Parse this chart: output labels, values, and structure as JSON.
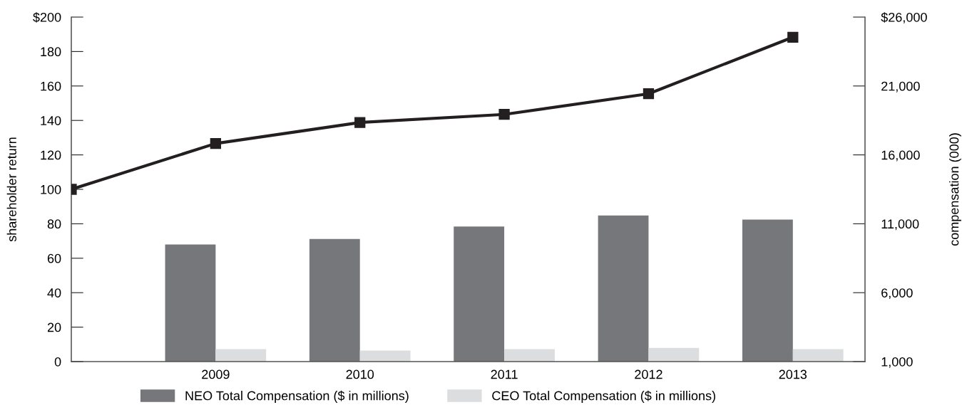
{
  "chart_data": {
    "type": "bar",
    "categories": [
      null,
      "2009",
      "2010",
      "2011",
      "2012",
      "2013"
    ],
    "series": [
      {
        "name": "NEO Total Compensation ($ in millions)",
        "color": "#76777b",
        "axis": "y2",
        "values": [
          null,
          9500,
          9900,
          10800,
          11600,
          11300
        ]
      },
      {
        "name": "CEO Total Compensation ($ in millions)",
        "color": "#dcddde",
        "axis": "y2",
        "values": [
          null,
          1900,
          1800,
          1900,
          2000,
          1900
        ]
      },
      {
        "type": "line",
        "color": "#231f20",
        "marker": "square",
        "line_style": "solid",
        "values": [
          100,
          126.6,
          138.8,
          143.5,
          155.5,
          188.3
        ]
      }
    ],
    "ylabel": "shareholder return",
    "y2label": "compensation (000)",
    "ylim": [
      0,
      200
    ],
    "yticks": [
      0,
      20,
      40,
      60,
      80,
      100,
      120,
      140,
      160,
      180,
      {
        "value": 200,
        "label": "$200"
      }
    ],
    "y2lim": [
      1000,
      26000
    ],
    "y2ticks": [
      {
        "value": 1000,
        "label": "1,000"
      },
      {
        "value": 6000,
        "label": "6,000"
      },
      {
        "value": 11000,
        "label": "11,000"
      },
      {
        "value": 16000,
        "label": "16,000"
      },
      {
        "value": 21000,
        "label": "21,000"
      },
      {
        "value": 26000,
        "label": "$26,000"
      }
    ],
    "grid": false,
    "legend": "bottom"
  }
}
